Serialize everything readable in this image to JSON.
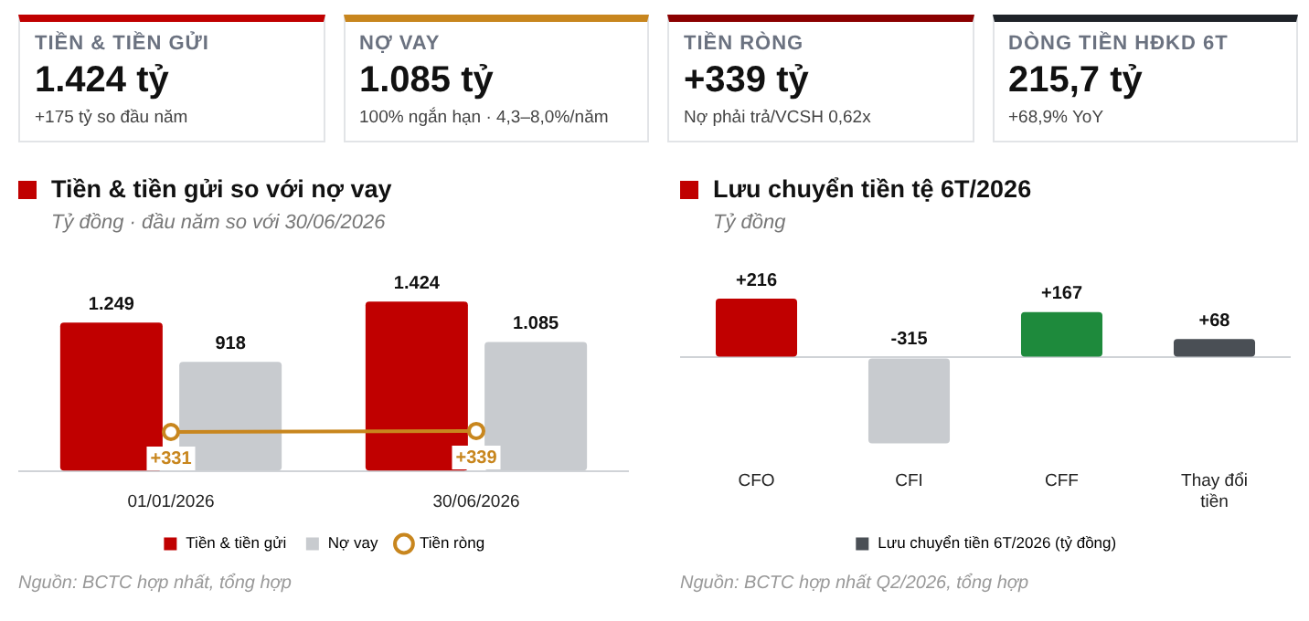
{
  "chart_data": [
    {
      "type": "other",
      "annotations": [
        "TIỀN & TIỀN GỬI",
        "1.424 tỷ",
        "+175 tỷ so đầu năm",
        "NỢ VAY",
        "1.085 tỷ",
        "100% ngắn hạn · 4,3–8,0%/năm",
        "TIỀN RÒNG",
        "+339 tỷ",
        "Nợ phải trả/VCSH 0,62x",
        "DÒNG TIỀN HĐKD 6T",
        "215,7 tỷ",
        "+68,9% YoY"
      ]
    },
    {
      "type": "bar",
      "title": "Tiền & tiền gửi so với nợ vay",
      "subtitle": "Tỷ đồng · đầu năm so với 30/06/2026",
      "categories": [
        "01/01/2026",
        "30/06/2026"
      ],
      "series": [
        {
          "name": "Tiền & tiền gửi",
          "color": "#c00000",
          "values": [
            1249,
            1424
          ],
          "value_labels": [
            "1.249",
            "1.424"
          ]
        },
        {
          "name": "Nợ vay",
          "color": "#c8cbcf",
          "values": [
            918,
            1085
          ],
          "value_labels": [
            "918",
            "1.085"
          ]
        },
        {
          "name": "Tiền ròng",
          "type": "line",
          "color": "#c8861e",
          "marker": "circle",
          "values": [
            331,
            339
          ],
          "value_labels": [
            "+331",
            "+339"
          ]
        }
      ],
      "legend": "bottom",
      "annotations": [
        "Nguồn: BCTC hợp nhất, tổng hợp"
      ]
    },
    {
      "type": "bar",
      "title": "Lưu chuyển tiền tệ 6T/2026",
      "subtitle": "Tỷ đồng",
      "categories": [
        "CFO",
        "CFI",
        "CFF",
        "Thay đổi tiền"
      ],
      "series": [
        {
          "name": "Lưu chuyển tiền 6T/2026 (tỷ đồng)",
          "color": "#4a4f55",
          "colors": [
            "#c00000",
            "#c8cbcf",
            "#1e8a3c",
            "#4a4f55"
          ],
          "values": [
            216,
            -315,
            167,
            68
          ],
          "value_labels": [
            "+216",
            "-315",
            "+167",
            "+68"
          ]
        }
      ],
      "legend": "bottom",
      "annotations": [
        "Nguồn: BCTC hợp nhất Q2/2026, tổng hợp"
      ]
    }
  ]
}
